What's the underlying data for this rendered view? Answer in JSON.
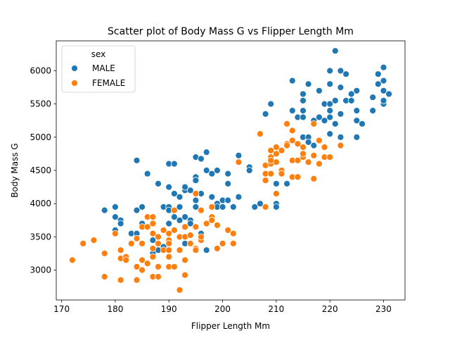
{
  "chart_data": {
    "type": "scatter",
    "title": "Scatter plot of Body Mass G vs Flipper Length Mm",
    "xlabel": "Flipper Length Mm",
    "ylabel": "Body Mass G",
    "xlim": [
      169,
      234
    ],
    "ylim": [
      2550,
      6450
    ],
    "xticks": [
      "170",
      "180",
      "190",
      "200",
      "210",
      "220",
      "230"
    ],
    "yticks": [
      "3000",
      "3500",
      "4000",
      "4500",
      "5000",
      "5500",
      "6000"
    ],
    "legend_title": "sex",
    "legend_position": "top-left",
    "grid": false,
    "series": [
      {
        "name": "MALE",
        "color": "#1f77b4",
        "points": [
          [
            178,
            3900
          ],
          [
            180,
            3950
          ],
          [
            180,
            3800
          ],
          [
            180,
            3600
          ],
          [
            181,
            3750
          ],
          [
            181,
            3700
          ],
          [
            183,
            3550
          ],
          [
            184,
            3550
          ],
          [
            184,
            3900
          ],
          [
            184,
            4650
          ],
          [
            185,
            3950
          ],
          [
            185,
            3700
          ],
          [
            186,
            4450
          ],
          [
            187,
            3450
          ],
          [
            187,
            3250
          ],
          [
            188,
            3300
          ],
          [
            188,
            4300
          ],
          [
            189,
            3950
          ],
          [
            189,
            3350
          ],
          [
            190,
            4600
          ],
          [
            190,
            3950
          ],
          [
            190,
            3900
          ],
          [
            190,
            3700
          ],
          [
            190,
            4250
          ],
          [
            191,
            3800
          ],
          [
            191,
            4600
          ],
          [
            191,
            4150
          ],
          [
            192,
            3750
          ],
          [
            192,
            3950
          ],
          [
            192,
            4100
          ],
          [
            193,
            4200
          ],
          [
            193,
            4250
          ],
          [
            193,
            3800
          ],
          [
            193,
            3400
          ],
          [
            194,
            3750
          ],
          [
            194,
            3700
          ],
          [
            194,
            4200
          ],
          [
            195,
            4400
          ],
          [
            195,
            4350
          ],
          [
            195,
            4050
          ],
          [
            195,
            3950
          ],
          [
            195,
            4700
          ],
          [
            196,
            4675
          ],
          [
            196,
            4150
          ],
          [
            196,
            3900
          ],
          [
            196,
            3550
          ],
          [
            197,
            4500
          ],
          [
            197,
            4775
          ],
          [
            197,
            3300
          ],
          [
            197,
            3700
          ],
          [
            198,
            4450
          ],
          [
            198,
            3750
          ],
          [
            198,
            4100
          ],
          [
            199,
            4500
          ],
          [
            199,
            4000
          ],
          [
            199,
            3950
          ],
          [
            200,
            4050
          ],
          [
            200,
            3950
          ],
          [
            201,
            4450
          ],
          [
            201,
            4300
          ],
          [
            201,
            4050
          ],
          [
            202,
            3950
          ],
          [
            203,
            4725
          ],
          [
            203,
            4100
          ],
          [
            205,
            4550
          ],
          [
            205,
            4500
          ],
          [
            206,
            3950
          ],
          [
            207,
            4000
          ],
          [
            208,
            5350
          ],
          [
            209,
            5500
          ],
          [
            210,
            4000
          ],
          [
            210,
            3950
          ],
          [
            210,
            4300
          ],
          [
            212,
            4300
          ],
          [
            213,
            5400
          ],
          [
            213,
            5850
          ],
          [
            214,
            5300
          ],
          [
            215,
            5000
          ],
          [
            215,
            5550
          ],
          [
            215,
            5650
          ],
          [
            215,
            5400
          ],
          [
            215,
            5300
          ],
          [
            216,
            5000
          ],
          [
            216,
            4925
          ],
          [
            217,
            5250
          ],
          [
            218,
            5700
          ],
          [
            218,
            5300
          ],
          [
            219,
            5500
          ],
          [
            220,
            5800
          ],
          [
            220,
            5500
          ],
          [
            220,
            5300
          ],
          [
            220,
            6000
          ],
          [
            220,
            5050
          ],
          [
            221,
            5550
          ],
          [
            221,
            6300
          ],
          [
            221,
            5200
          ],
          [
            222,
            5000
          ],
          [
            222,
            6000
          ],
          [
            222,
            5750
          ],
          [
            222,
            5350
          ],
          [
            223,
            5550
          ],
          [
            223,
            5950
          ],
          [
            224,
            5650
          ],
          [
            224,
            5550
          ],
          [
            225,
            5700
          ],
          [
            225,
            5400
          ],
          [
            225,
            5250
          ],
          [
            225,
            5000
          ],
          [
            226,
            5200
          ],
          [
            228,
            5600
          ],
          [
            228,
            5400
          ],
          [
            229,
            5800
          ],
          [
            229,
            5950
          ],
          [
            230,
            5500
          ],
          [
            230,
            5550
          ],
          [
            230,
            5700
          ],
          [
            230,
            5850
          ],
          [
            230,
            6050
          ],
          [
            231,
            5650
          ],
          [
            216,
            5800
          ],
          [
            217,
            4875
          ],
          [
            219,
            5250
          ],
          [
            220,
            5400
          ]
        ]
      },
      {
        "name": "FEMALE",
        "color": "#ff7f0e",
        "points": [
          [
            172,
            3150
          ],
          [
            174,
            3400
          ],
          [
            176,
            3450
          ],
          [
            178,
            3250
          ],
          [
            178,
            2900
          ],
          [
            180,
            3550
          ],
          [
            181,
            3300
          ],
          [
            181,
            3175
          ],
          [
            181,
            2850
          ],
          [
            182,
            3200
          ],
          [
            182,
            3150
          ],
          [
            183,
            3400
          ],
          [
            184,
            3050
          ],
          [
            184,
            2850
          ],
          [
            184,
            3475
          ],
          [
            185,
            3650
          ],
          [
            185,
            3400
          ],
          [
            185,
            3150
          ],
          [
            185,
            3000
          ],
          [
            186,
            3800
          ],
          [
            186,
            3650
          ],
          [
            186,
            3100
          ],
          [
            187,
            3700
          ],
          [
            187,
            3550
          ],
          [
            187,
            3325
          ],
          [
            187,
            2900
          ],
          [
            187,
            3200
          ],
          [
            187,
            3800
          ],
          [
            188,
            3400
          ],
          [
            188,
            3500
          ],
          [
            188,
            3050
          ],
          [
            188,
            2900
          ],
          [
            189,
            3600
          ],
          [
            189,
            3300
          ],
          [
            190,
            3450
          ],
          [
            190,
            3300
          ],
          [
            190,
            3050
          ],
          [
            190,
            3550
          ],
          [
            190,
            3200
          ],
          [
            190,
            3400
          ],
          [
            191,
            3600
          ],
          [
            191,
            3900
          ],
          [
            191,
            3050
          ],
          [
            192,
            2700
          ],
          [
            192,
            3500
          ],
          [
            192,
            3300
          ],
          [
            193,
            3650
          ],
          [
            193,
            3500
          ],
          [
            193,
            2925
          ],
          [
            193,
            3150
          ],
          [
            194,
            3525
          ],
          [
            194,
            3400
          ],
          [
            195,
            3650
          ],
          [
            195,
            3325
          ],
          [
            195,
            4150
          ],
          [
            195,
            3300
          ],
          [
            196,
            3450
          ],
          [
            196,
            3500
          ],
          [
            196,
            3900
          ],
          [
            197,
            3700
          ],
          [
            198,
            3800
          ],
          [
            198,
            3950
          ],
          [
            198,
            3750
          ],
          [
            199,
            3675
          ],
          [
            199,
            3325
          ],
          [
            200,
            3400
          ],
          [
            201,
            3600
          ],
          [
            202,
            3550
          ],
          [
            202,
            3400
          ],
          [
            203,
            4625
          ],
          [
            207,
            5050
          ],
          [
            208,
            3950
          ],
          [
            208,
            4350
          ],
          [
            208,
            4450
          ],
          [
            208,
            4575
          ],
          [
            209,
            4700
          ],
          [
            209,
            4800
          ],
          [
            209,
            4600
          ],
          [
            209,
            4450
          ],
          [
            210,
            4850
          ],
          [
            210,
            4750
          ],
          [
            210,
            4625
          ],
          [
            210,
            4150
          ],
          [
            211,
            4500
          ],
          [
            211,
            4800
          ],
          [
            212,
            5200
          ],
          [
            212,
            4900
          ],
          [
            212,
            4875
          ],
          [
            213,
            4650
          ],
          [
            213,
            4400
          ],
          [
            213,
            4950
          ],
          [
            213,
            5100
          ],
          [
            214,
            4650
          ],
          [
            214,
            4900
          ],
          [
            214,
            4400
          ],
          [
            215,
            4700
          ],
          [
            215,
            4850
          ],
          [
            215,
            4750
          ],
          [
            216,
            4625
          ],
          [
            217,
            4375
          ],
          [
            217,
            5200
          ],
          [
            217,
            4725
          ],
          [
            218,
            4950
          ],
          [
            218,
            4600
          ],
          [
            219,
            4850
          ],
          [
            219,
            4700
          ],
          [
            220,
            4700
          ],
          [
            222,
            4875
          ],
          [
            211,
            4450
          ],
          [
            209,
            4650
          ]
        ]
      }
    ]
  }
}
